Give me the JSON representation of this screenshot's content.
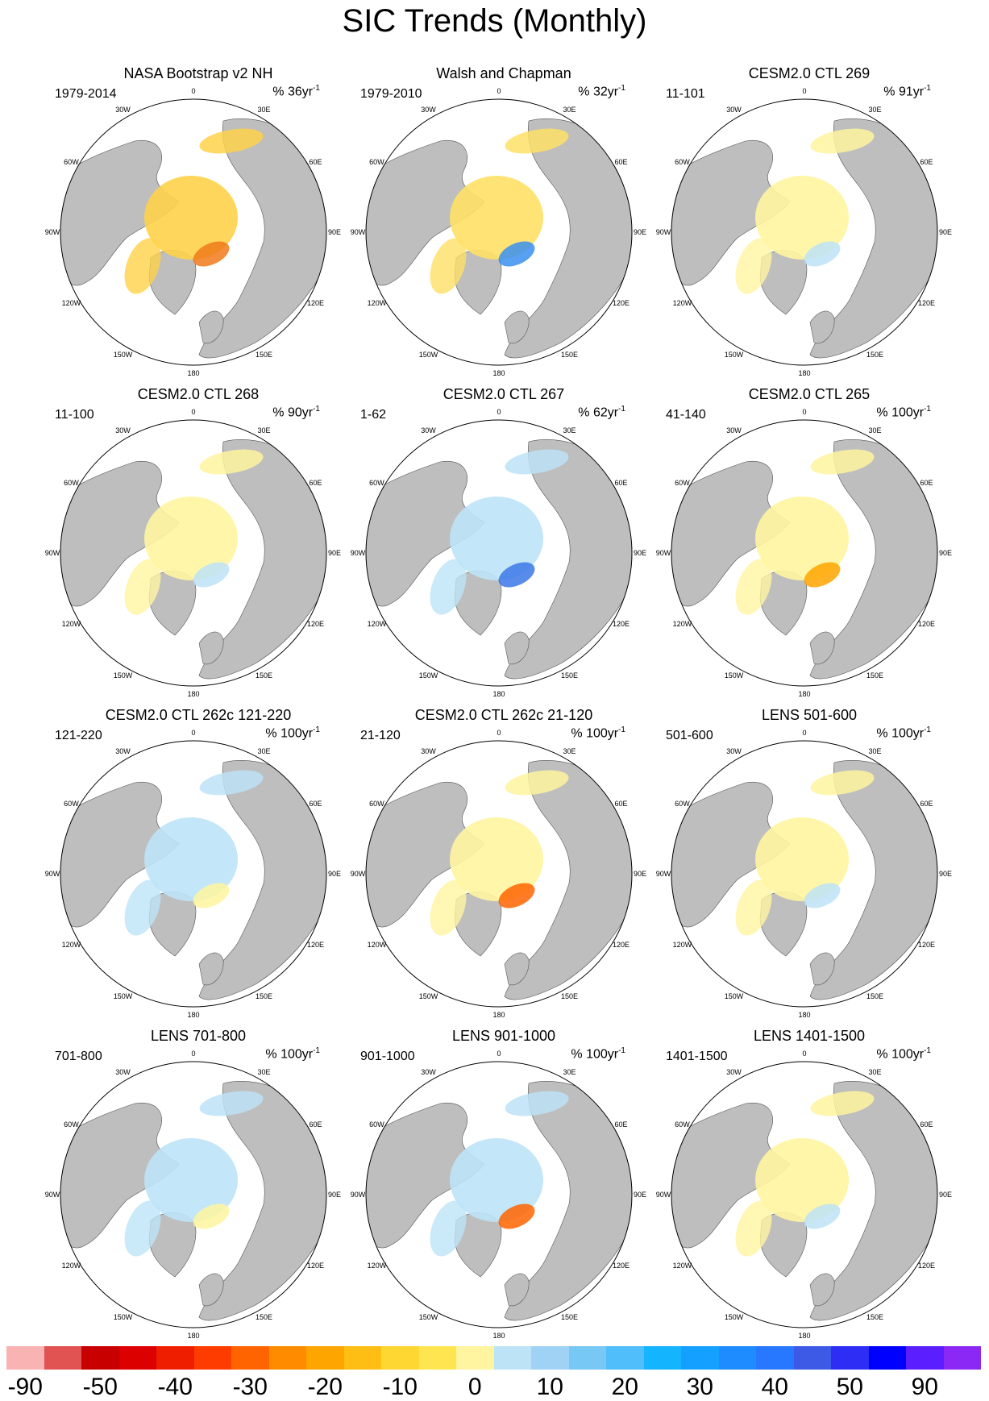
{
  "title": "SIC Trends (Monthly)",
  "chart_data": {
    "type": "polar-map-grid",
    "projection": "North Polar Stereographic",
    "variable": "Sea ice concentration trend",
    "rows": 4,
    "cols": 3,
    "lon_labels": [
      "180",
      "150E",
      "120E",
      "90E",
      "60E",
      "30E",
      "0",
      "30W",
      "60W",
      "90W",
      "120W",
      "150W"
    ],
    "panels": [
      {
        "title": "NASA Bootstrap v2 NH",
        "period": "1979-2014",
        "units": "% 36yr",
        "exp": "-1"
      },
      {
        "title": "Walsh and Chapman",
        "period": "1979-2010",
        "units": "% 32yr",
        "exp": "-1"
      },
      {
        "title": "CESM2.0 CTL 269",
        "period": "11-101",
        "units": "% 91yr",
        "exp": "-1"
      },
      {
        "title": "CESM2.0 CTL 268",
        "period": "11-100",
        "units": "% 90yr",
        "exp": "-1"
      },
      {
        "title": "CESM2.0 CTL 267",
        "period": "1-62",
        "units": "% 62yr",
        "exp": "-1"
      },
      {
        "title": "CESM2.0 CTL 265",
        "period": "41-140",
        "units": "% 100yr",
        "exp": "-1"
      },
      {
        "title": "CESM2.0 CTL 262c 121-220",
        "period": "121-220",
        "units": "% 100yr",
        "exp": "-1"
      },
      {
        "title": "CESM2.0 CTL 262c 21-120",
        "period": "21-120",
        "units": "% 100yr",
        "exp": "-1"
      },
      {
        "title": "LENS 501-600",
        "period": "501-600",
        "units": "% 100yr",
        "exp": "-1"
      },
      {
        "title": "LENS 701-800",
        "period": "701-800",
        "units": "% 100yr",
        "exp": "-1"
      },
      {
        "title": "LENS 901-1000",
        "period": "901-1000",
        "units": "% 100yr",
        "exp": "-1"
      },
      {
        "title": "LENS 1401-1500",
        "period": "1401-1500",
        "units": "% 100yr",
        "exp": "-1"
      }
    ],
    "colorbar": {
      "colors": [
        "#f9b3b3",
        "#e15252",
        "#c80000",
        "#dc0000",
        "#f01e00",
        "#ff3c00",
        "#ff6400",
        "#ff8c00",
        "#ffa500",
        "#ffbe14",
        "#ffd732",
        "#ffe650",
        "#fff5a0",
        "#bde3f7",
        "#a0d2f5",
        "#78c8f5",
        "#50befa",
        "#14b4ff",
        "#14a0ff",
        "#1e8cff",
        "#2878ff",
        "#3c5ae6",
        "#2d2df5",
        "#0000ff",
        "#5a1eff",
        "#8c28f5"
      ],
      "tick_labels": [
        "-90",
        "-50",
        "-40",
        "-30",
        "-20",
        "-10",
        "0",
        "10",
        "20",
        "30",
        "40",
        "50",
        "90"
      ]
    }
  }
}
